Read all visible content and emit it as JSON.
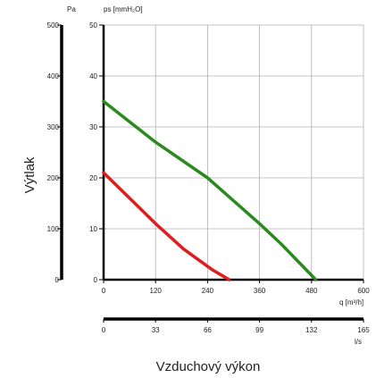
{
  "chart_data": {
    "type": "line",
    "ylabel": "Výtlak",
    "xlabel": "Vzduchový výkon",
    "left_axis": {
      "unit": "Pa",
      "ticks": [
        "500",
        "400",
        "300",
        "200",
        "100",
        "0"
      ],
      "range": [
        0,
        500
      ]
    },
    "y_axis": {
      "unit": "ps [mmH₂O]",
      "ticks": [
        "50",
        "40",
        "30",
        "20",
        "10",
        "0"
      ],
      "range": [
        0,
        50
      ]
    },
    "x_axis": {
      "unit": "q [m³/h]",
      "ticks": [
        "0",
        "120",
        "240",
        "360",
        "480",
        "600"
      ],
      "range": [
        0,
        600
      ]
    },
    "bottom_axis": {
      "unit": "l/s",
      "ticks": [
        "0",
        "33",
        "66",
        "99",
        "132",
        "165"
      ],
      "range": [
        0,
        165
      ]
    },
    "grid": true,
    "series": [
      {
        "color": "#e41a1c",
        "points": [
          [
            0,
            21
          ],
          [
            60,
            16
          ],
          [
            120,
            11
          ],
          [
            185,
            6
          ],
          [
            250,
            2
          ],
          [
            290,
            0
          ]
        ]
      },
      {
        "color": "#2a8a1e",
        "points": [
          [
            0,
            35
          ],
          [
            120,
            27
          ],
          [
            240,
            20
          ],
          [
            360,
            11
          ],
          [
            410,
            7
          ],
          [
            490,
            0
          ]
        ]
      }
    ]
  }
}
